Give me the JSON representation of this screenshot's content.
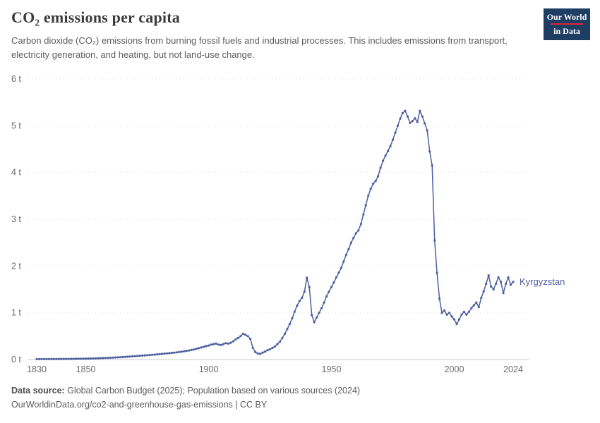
{
  "header": {
    "title": "CO₂ emissions per capita",
    "subtitle": "Carbon dioxide (CO₂) emissions from burning fossil fuels and industrial processes. This includes emissions from transport, electricity generation, and heating, but not land-use change."
  },
  "logo": {
    "line1": "Our World",
    "line2": "in Data",
    "background_color": "#1d3d63",
    "accent_color": "#e0243a"
  },
  "footer": {
    "source_label": "Data source:",
    "source_text": "Global Carbon Budget (2025); Population based on various sources (2024)",
    "link": "OurWorldinData.org/co2-and-greenhouse-gas-emissions",
    "separator": "|",
    "license": "CC BY"
  },
  "chart_data": {
    "type": "line",
    "title": "CO₂ emissions per capita",
    "xlabel": "",
    "ylabel": "",
    "unit": "t",
    "grid": "horizontal-dotted",
    "legend_position": "end-of-line-label",
    "xlim": [
      1830,
      2024
    ],
    "ylim": [
      0,
      6
    ],
    "x_ticks": [
      1830,
      1850,
      1900,
      1950,
      2000,
      2024
    ],
    "y_ticks": [
      {
        "value": 0,
        "label": "0 t"
      },
      {
        "value": 1,
        "label": "1 t"
      },
      {
        "value": 2,
        "label": "2 t"
      },
      {
        "value": 3,
        "label": "3 t"
      },
      {
        "value": 4,
        "label": "4 t"
      },
      {
        "value": 5,
        "label": "5 t"
      },
      {
        "value": 6,
        "label": "6 t"
      }
    ],
    "year_start": 1830,
    "year_end": 2024,
    "series": [
      {
        "name": "Kyrgyzstan",
        "color": "#4c5f9e",
        "values": [
          0.01,
          0.01,
          0.01,
          0.01,
          0.01,
          0.01,
          0.012,
          0.012,
          0.012,
          0.012,
          0.013,
          0.013,
          0.014,
          0.014,
          0.015,
          0.015,
          0.016,
          0.017,
          0.018,
          0.019,
          0.02,
          0.021,
          0.022,
          0.024,
          0.026,
          0.028,
          0.03,
          0.032,
          0.034,
          0.036,
          0.038,
          0.041,
          0.044,
          0.047,
          0.05,
          0.053,
          0.057,
          0.061,
          0.065,
          0.069,
          0.073,
          0.077,
          0.081,
          0.085,
          0.089,
          0.093,
          0.097,
          0.101,
          0.106,
          0.111,
          0.116,
          0.121,
          0.126,
          0.131,
          0.136,
          0.142,
          0.148,
          0.154,
          0.161,
          0.168,
          0.176,
          0.185,
          0.195,
          0.205,
          0.216,
          0.23,
          0.244,
          0.258,
          0.273,
          0.288,
          0.3,
          0.32,
          0.33,
          0.34,
          0.32,
          0.31,
          0.33,
          0.35,
          0.34,
          0.36,
          0.39,
          0.43,
          0.46,
          0.5,
          0.55,
          0.53,
          0.5,
          0.44,
          0.25,
          0.16,
          0.13,
          0.12,
          0.15,
          0.17,
          0.2,
          0.22,
          0.25,
          0.28,
          0.33,
          0.38,
          0.46,
          0.55,
          0.65,
          0.76,
          0.88,
          1.02,
          1.15,
          1.25,
          1.32,
          1.45,
          1.75,
          1.55,
          0.95,
          0.8,
          0.9,
          1.0,
          1.1,
          1.22,
          1.35,
          1.45,
          1.55,
          1.65,
          1.76,
          1.86,
          1.96,
          2.1,
          2.24,
          2.36,
          2.5,
          2.6,
          2.7,
          2.76,
          2.9,
          3.1,
          3.3,
          3.5,
          3.65,
          3.76,
          3.82,
          3.92,
          4.1,
          4.25,
          4.36,
          4.46,
          4.56,
          4.7,
          4.85,
          5.0,
          5.15,
          5.27,
          5.32,
          5.2,
          5.06,
          5.1,
          5.16,
          5.08,
          5.32,
          5.2,
          5.05,
          4.9,
          4.45,
          4.15,
          2.55,
          1.85,
          1.3,
          1.0,
          1.05,
          0.96,
          1.0,
          0.92,
          0.86,
          0.76,
          0.86,
          0.96,
          1.02,
          0.96,
          1.02,
          1.1,
          1.16,
          1.22,
          1.12,
          1.32,
          1.46,
          1.62,
          1.8,
          1.56,
          1.5,
          1.62,
          1.76,
          1.66,
          1.42,
          1.62,
          1.76,
          1.6,
          1.66
        ]
      }
    ]
  }
}
